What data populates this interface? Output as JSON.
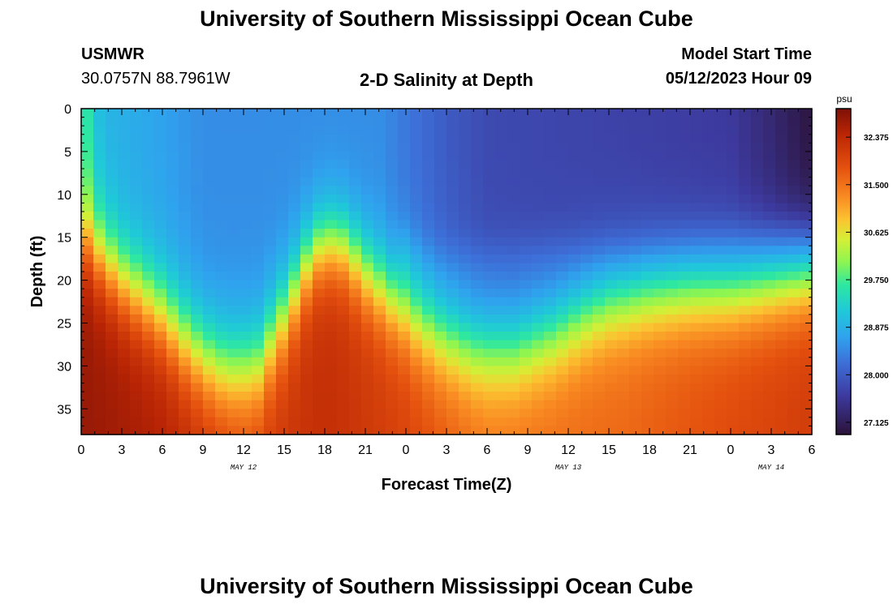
{
  "header": {
    "title": "University of Southern Mississippi Ocean Cube",
    "station": "USMWR",
    "location": "30.0757N  88.7961W",
    "subtitle": "2-D Salinity at Depth",
    "model_start_label": "Model Start Time",
    "model_start_value": "05/12/2023 Hour 09"
  },
  "footer": {
    "title": "University of Southern Mississippi Ocean Cube"
  },
  "chart_data": {
    "type": "heatmap",
    "title": "2-D Salinity at Depth",
    "xlabel": "Forecast Time(Z)",
    "ylabel": "Depth (ft)",
    "x_tick_labels": [
      "0",
      "3",
      "6",
      "9",
      "12",
      "15",
      "18",
      "21",
      "0",
      "3",
      "6",
      "9",
      "12",
      "15",
      "18",
      "21",
      "0",
      "3",
      "6"
    ],
    "x_range_hours": [
      0,
      54
    ],
    "date_labels": [
      {
        "label": "MAY 12",
        "hour": 12
      },
      {
        "label": "MAY 13",
        "hour": 36
      },
      {
        "label": "MAY 14",
        "hour": 51
      }
    ],
    "y_ticks": [
      0,
      5,
      10,
      15,
      20,
      25,
      30,
      35
    ],
    "y_range_ft": [
      0,
      38
    ],
    "colorbar": {
      "unit": "psu",
      "min": 26.9,
      "max": 32.9,
      "tick_values": [
        32.375,
        31.5,
        30.625,
        29.75,
        28.875,
        28.0,
        27.125
      ],
      "tick_labels": [
        "32.375",
        "31.500",
        "30.625",
        "29.750",
        "28.875",
        "28.000",
        "27.125"
      ]
    },
    "surface_salinity_psu": [
      [
        0,
        29.9
      ],
      [
        1,
        29.1
      ],
      [
        2,
        28.9
      ],
      [
        6,
        28.7
      ],
      [
        9,
        28.5
      ],
      [
        18,
        28.5
      ],
      [
        22,
        28.5
      ],
      [
        24,
        28.3
      ],
      [
        26,
        28.1
      ],
      [
        27,
        28.0
      ],
      [
        30,
        27.8
      ],
      [
        40,
        27.7
      ],
      [
        48,
        27.6
      ],
      [
        51,
        27.3
      ],
      [
        54,
        26.95
      ]
    ],
    "halocline_depth_ft": [
      [
        0,
        15
      ],
      [
        3,
        20
      ],
      [
        6,
        24
      ],
      [
        8,
        27.5
      ],
      [
        10,
        30
      ],
      [
        11.5,
        30.5
      ],
      [
        13,
        30
      ],
      [
        15,
        24
      ],
      [
        17,
        17
      ],
      [
        18,
        15.5
      ],
      [
        19.5,
        16
      ],
      [
        21,
        19
      ],
      [
        23,
        22
      ],
      [
        25,
        25
      ],
      [
        26.5,
        26.5
      ],
      [
        28,
        27.5
      ],
      [
        29,
        28
      ],
      [
        32,
        28
      ],
      [
        35,
        26
      ],
      [
        37,
        24
      ],
      [
        39,
        22.5
      ],
      [
        42,
        21.5
      ],
      [
        45,
        21
      ],
      [
        48,
        21
      ],
      [
        51,
        20
      ],
      [
        54,
        19
      ]
    ],
    "near_surface_layer_depth_ft": [
      [
        0,
        15
      ],
      [
        24,
        15
      ],
      [
        26,
        17
      ],
      [
        30,
        16.5
      ],
      [
        35,
        16
      ],
      [
        40,
        17
      ],
      [
        45,
        16
      ],
      [
        54,
        14
      ]
    ],
    "bottom_salinity_psu": [
      [
        0,
        32.7
      ],
      [
        6,
        32.5
      ],
      [
        12,
        32.0
      ],
      [
        18,
        32.3
      ],
      [
        24,
        32.0
      ],
      [
        30,
        31.5
      ],
      [
        40,
        31.6
      ],
      [
        48,
        31.9
      ],
      [
        54,
        32.1
      ]
    ],
    "legend": "right"
  }
}
